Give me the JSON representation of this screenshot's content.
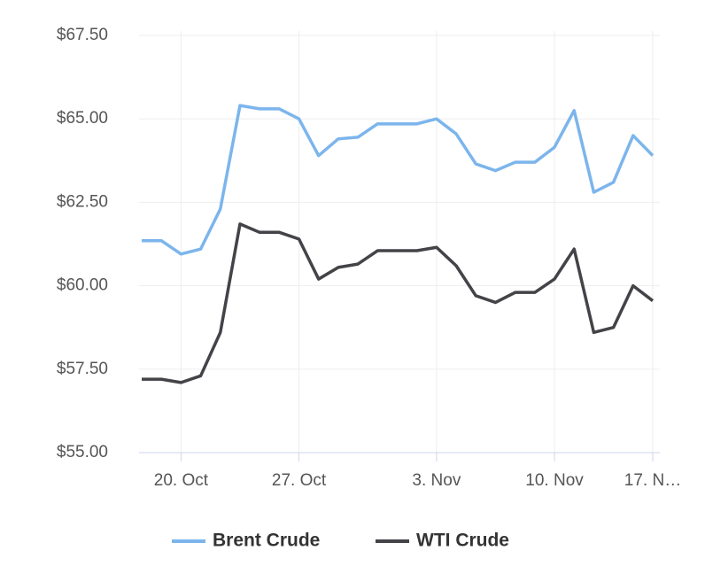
{
  "chart_data": {
    "type": "line",
    "categories": [
      null,
      null,
      "20. Oct",
      null,
      null,
      null,
      null,
      null,
      "27. Oct",
      null,
      null,
      null,
      null,
      null,
      null,
      "3. Nov",
      null,
      null,
      null,
      null,
      null,
      "10. Nov",
      null,
      null,
      null,
      null,
      "17. N…"
    ],
    "series": [
      {
        "name": "Brent Crude",
        "color": "#7cb5ec",
        "values": [
          61.35,
          61.35,
          60.95,
          61.1,
          62.3,
          65.4,
          65.3,
          65.3,
          65.0,
          63.9,
          64.4,
          64.45,
          64.85,
          64.85,
          64.85,
          65.0,
          64.55,
          63.65,
          63.45,
          63.7,
          63.7,
          64.15,
          65.25,
          62.8,
          63.1,
          64.5,
          63.9
        ]
      },
      {
        "name": "WTI Crude",
        "color": "#434348",
        "values": [
          57.2,
          57.2,
          57.1,
          57.3,
          58.6,
          61.85,
          61.6,
          61.6,
          61.4,
          60.2,
          60.55,
          60.65,
          61.05,
          61.05,
          61.05,
          61.15,
          60.6,
          59.7,
          59.5,
          59.8,
          59.8,
          60.2,
          61.1,
          58.6,
          58.75,
          60.0,
          59.55
        ]
      }
    ],
    "ylim": [
      55,
      67.5
    ],
    "yticks": [
      {
        "value": 55,
        "label": "$55.00"
      },
      {
        "value": 57.5,
        "label": "$57.50"
      },
      {
        "value": 60,
        "label": "$60.00"
      },
      {
        "value": 62.5,
        "label": "$62.50"
      },
      {
        "value": 65,
        "label": "$65.00"
      },
      {
        "value": 67.5,
        "label": "$67.50"
      }
    ],
    "grid": true,
    "legend": "bottom"
  }
}
